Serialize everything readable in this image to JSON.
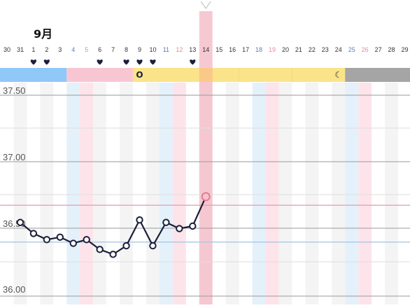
{
  "header": {
    "month": "9月"
  },
  "chart_data": {
    "type": "line",
    "title": "",
    "xlabel": "",
    "ylabel": "",
    "x": [
      "30",
      "31",
      "1",
      "2",
      "3",
      "4",
      "5",
      "6",
      "7",
      "8",
      "9",
      "10",
      "11",
      "12",
      "13",
      "14",
      "15",
      "16",
      "17",
      "18",
      "19",
      "20",
      "21",
      "22",
      "23",
      "24",
      "25",
      "26",
      "27",
      "28",
      "29"
    ],
    "day_colors": {
      "4": "#5b7fb5",
      "5": "#e58aa0",
      "11": "#5b7fb5",
      "12": "#e58aa0",
      "18": "#5b7fb5",
      "19": "#e58aa0",
      "25": "#5b7fb5",
      "26": "#e58aa0"
    },
    "yticks": [
      "36.00",
      "36.50",
      "37.00",
      "37.50"
    ],
    "ylim": [
      35.95,
      37.58
    ],
    "series": [
      {
        "x": [
          "31",
          "1",
          "2",
          "3",
          "4",
          "5",
          "6",
          "7",
          "8",
          "9",
          "10",
          "11",
          "12",
          "13",
          "14"
        ],
        "values": [
          36.51,
          36.42,
          36.37,
          36.39,
          36.34,
          36.37,
          36.29,
          36.25,
          36.32,
          36.53,
          36.32,
          36.51,
          36.46,
          36.48,
          36.72
        ],
        "highlight_x": "14"
      }
    ],
    "hearts": [
      "1",
      "2",
      "6",
      "8",
      "9",
      "10",
      "13"
    ],
    "selected_day": "14",
    "period_bar": [
      {
        "from": "30",
        "to": "3",
        "color": "#90c8f8"
      },
      {
        "from": "4",
        "to": "8",
        "color": "#f8c6d3"
      },
      {
        "from": "9",
        "to": "24",
        "color": "#fbe38a"
      },
      {
        "from": "25",
        "to": "29",
        "color": "#a5a5a5"
      }
    ],
    "bar_markers": [
      {
        "day": "9",
        "text": "O"
      },
      {
        "day": "24",
        "text": "☾"
      }
    ],
    "reference_lines": [
      {
        "y": 36.65,
        "color": "#e6a3b0"
      },
      {
        "y": 36.35,
        "color": "#a9c9e6"
      }
    ],
    "colors": {
      "line": "#1c1f3a",
      "highlight": "#e87a94",
      "column_blue": "#e4f1fb",
      "column_pink": "#fde4ea",
      "column_grey": "#f4f4f4",
      "selected_column": "#f5bfca"
    }
  }
}
